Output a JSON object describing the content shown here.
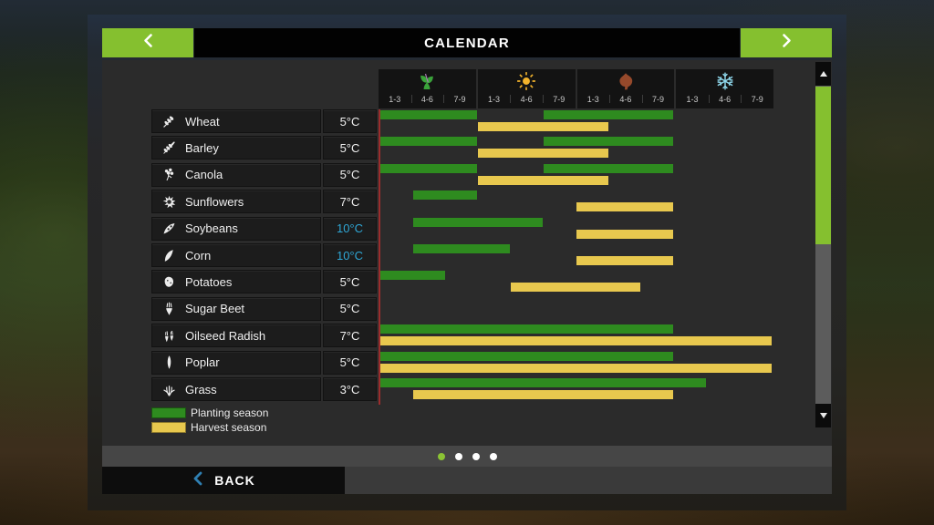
{
  "title": "CALENDAR",
  "seasons": [
    {
      "name": "spring",
      "icon": "spring-icon",
      "periods": [
        "1-3",
        "4-6",
        "7-9"
      ]
    },
    {
      "name": "summer",
      "icon": "summer-icon",
      "periods": [
        "1-3",
        "4-6",
        "7-9"
      ]
    },
    {
      "name": "autumn",
      "icon": "autumn-icon",
      "periods": [
        "1-3",
        "4-6",
        "7-9"
      ]
    },
    {
      "name": "winter",
      "icon": "winter-icon",
      "periods": [
        "1-3",
        "4-6",
        "7-9"
      ]
    }
  ],
  "crops": [
    {
      "name": "Wheat",
      "icon": "wheat-icon",
      "temperature": "5°C",
      "temperature_color": "#f0f0f0",
      "planting": [
        [
          1,
          3
        ],
        [
          6,
          9
        ]
      ],
      "harvest": [
        [
          4,
          7
        ]
      ]
    },
    {
      "name": "Barley",
      "icon": "barley-icon",
      "temperature": "5°C",
      "temperature_color": "#f0f0f0",
      "planting": [
        [
          1,
          3
        ],
        [
          6,
          9
        ]
      ],
      "harvest": [
        [
          4,
          7
        ]
      ]
    },
    {
      "name": "Canola",
      "icon": "canola-icon",
      "temperature": "5°C",
      "temperature_color": "#f0f0f0",
      "planting": [
        [
          1,
          3
        ],
        [
          6,
          9
        ]
      ],
      "harvest": [
        [
          4,
          7
        ]
      ]
    },
    {
      "name": "Sunflowers",
      "icon": "sunflowers-icon",
      "temperature": "7°C",
      "temperature_color": "#f0f0f0",
      "planting": [
        [
          2,
          3
        ]
      ],
      "harvest": [
        [
          7,
          9
        ]
      ]
    },
    {
      "name": "Soybeans",
      "icon": "soybeans-icon",
      "temperature": "10°C",
      "temperature_color": "#2fa7d6",
      "planting": [
        [
          2,
          5
        ]
      ],
      "harvest": [
        [
          7,
          9
        ]
      ]
    },
    {
      "name": "Corn",
      "icon": "corn-icon",
      "temperature": "10°C",
      "temperature_color": "#2fa7d6",
      "planting": [
        [
          2,
          4
        ]
      ],
      "harvest": [
        [
          7,
          9
        ]
      ]
    },
    {
      "name": "Potatoes",
      "icon": "potatoes-icon",
      "temperature": "5°C",
      "temperature_color": "#f0f0f0",
      "planting": [
        [
          1,
          2
        ]
      ],
      "harvest": [
        [
          5,
          8
        ]
      ]
    },
    {
      "name": "Sugar Beet",
      "icon": "sugar-beet-icon",
      "temperature": "5°C",
      "temperature_color": "#f0f0f0",
      "planting": [],
      "harvest": []
    },
    {
      "name": "Oilseed Radish",
      "icon": "oilseed-radish-icon",
      "temperature": "7°C",
      "temperature_color": "#f0f0f0",
      "planting": [
        [
          1,
          9
        ]
      ],
      "harvest": [
        [
          1,
          12
        ]
      ]
    },
    {
      "name": "Poplar",
      "icon": "poplar-icon",
      "temperature": "5°C",
      "temperature_color": "#f0f0f0",
      "planting": [
        [
          1,
          9
        ]
      ],
      "harvest": [
        [
          1,
          12
        ]
      ]
    },
    {
      "name": "Grass",
      "icon": "grass-icon",
      "temperature": "3°C",
      "temperature_color": "#f0f0f0",
      "planting": [
        [
          1,
          10
        ]
      ],
      "harvest": [
        [
          2,
          9
        ]
      ]
    }
  ],
  "legend": [
    {
      "label": "Planting season",
      "color": "#2e8b1f"
    },
    {
      "label": "Harvest season",
      "color": "#e8c84e"
    }
  ],
  "pagination": {
    "total": 4,
    "active": 1
  },
  "footer": {
    "back_label": "BACK"
  },
  "colors": {
    "planting_bar": "#2e8b1f",
    "harvest_bar": "#e8c84e",
    "accent_green": "#85c02f",
    "cold_temperature_text": "#2fa7d6",
    "chart_start_line": "#9b2d2d"
  }
}
